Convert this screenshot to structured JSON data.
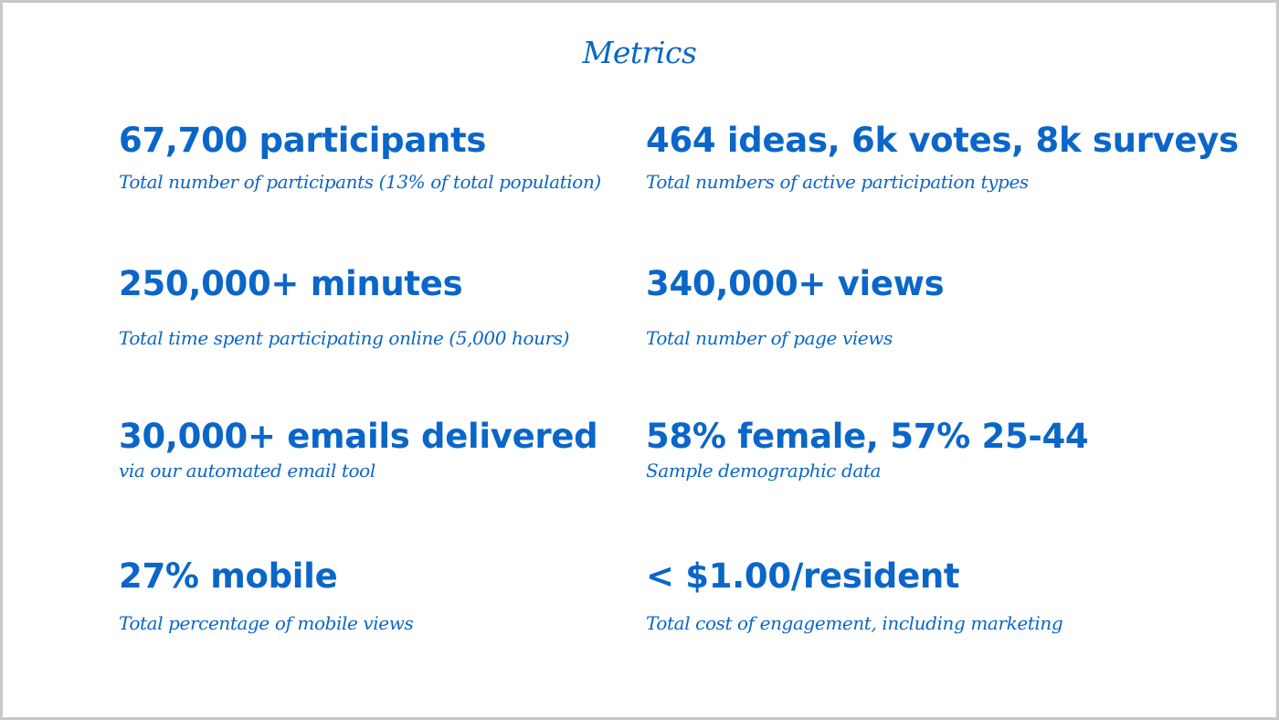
{
  "title": "Metrics",
  "metrics": [
    {
      "headline": "67,700 participants",
      "caption": "Total number of participants (13% of total population)"
    },
    {
      "headline": "464 ideas, 6k votes, 8k surveys",
      "caption": "Total numbers of active participation types"
    },
    {
      "headline": "250,000+ minutes",
      "caption": "Total time spent participating online (5,000 hours)"
    },
    {
      "headline": "340,000+ views",
      "caption": "Total number of page views"
    },
    {
      "headline": "30,000+ emails delivered",
      "caption": "via our automated email tool"
    },
    {
      "headline": "58% female, 57% 25-44",
      "caption": "Sample demographic data"
    },
    {
      "headline": "27% mobile",
      "caption": "Total percentage of mobile views"
    },
    {
      "headline": "< $1.00/resident",
      "caption": "Total cost of engagement, including marketing"
    }
  ]
}
